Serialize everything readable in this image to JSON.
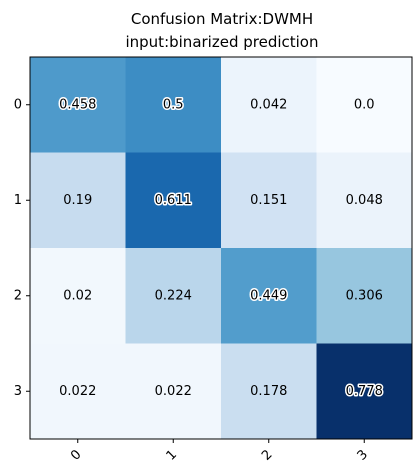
{
  "chart_data": {
    "type": "heatmap",
    "title": "Confusion Matrix:DWMH",
    "subtitle": "input:binarized prediction",
    "xlabel": "",
    "ylabel": "",
    "x_categories": [
      "0",
      "1",
      "2",
      "3"
    ],
    "y_categories": [
      "0",
      "1",
      "2",
      "3"
    ],
    "values": [
      [
        0.458,
        0.5,
        0.042,
        0.0
      ],
      [
        0.19,
        0.611,
        0.151,
        0.048
      ],
      [
        0.02,
        0.224,
        0.449,
        0.306
      ],
      [
        0.022,
        0.022,
        0.178,
        0.778
      ]
    ],
    "value_labels": [
      [
        "0.458",
        "0.5",
        "0.042",
        "0.0"
      ],
      [
        "0.19",
        "0.611",
        "0.151",
        "0.048"
      ],
      [
        "0.02",
        "0.224",
        "0.449",
        "0.306"
      ],
      [
        "0.022",
        "0.022",
        "0.178",
        "0.778"
      ]
    ],
    "colormap": "Blues",
    "colormap_stops": [
      "#f7fbff",
      "#deebf7",
      "#c6dbef",
      "#9ecae1",
      "#6baed6",
      "#4292c6",
      "#2171b5",
      "#08519c",
      "#08306b"
    ],
    "color_range": [
      0.0,
      0.778
    ],
    "x_tick_rotation": 45,
    "grid": false
  }
}
